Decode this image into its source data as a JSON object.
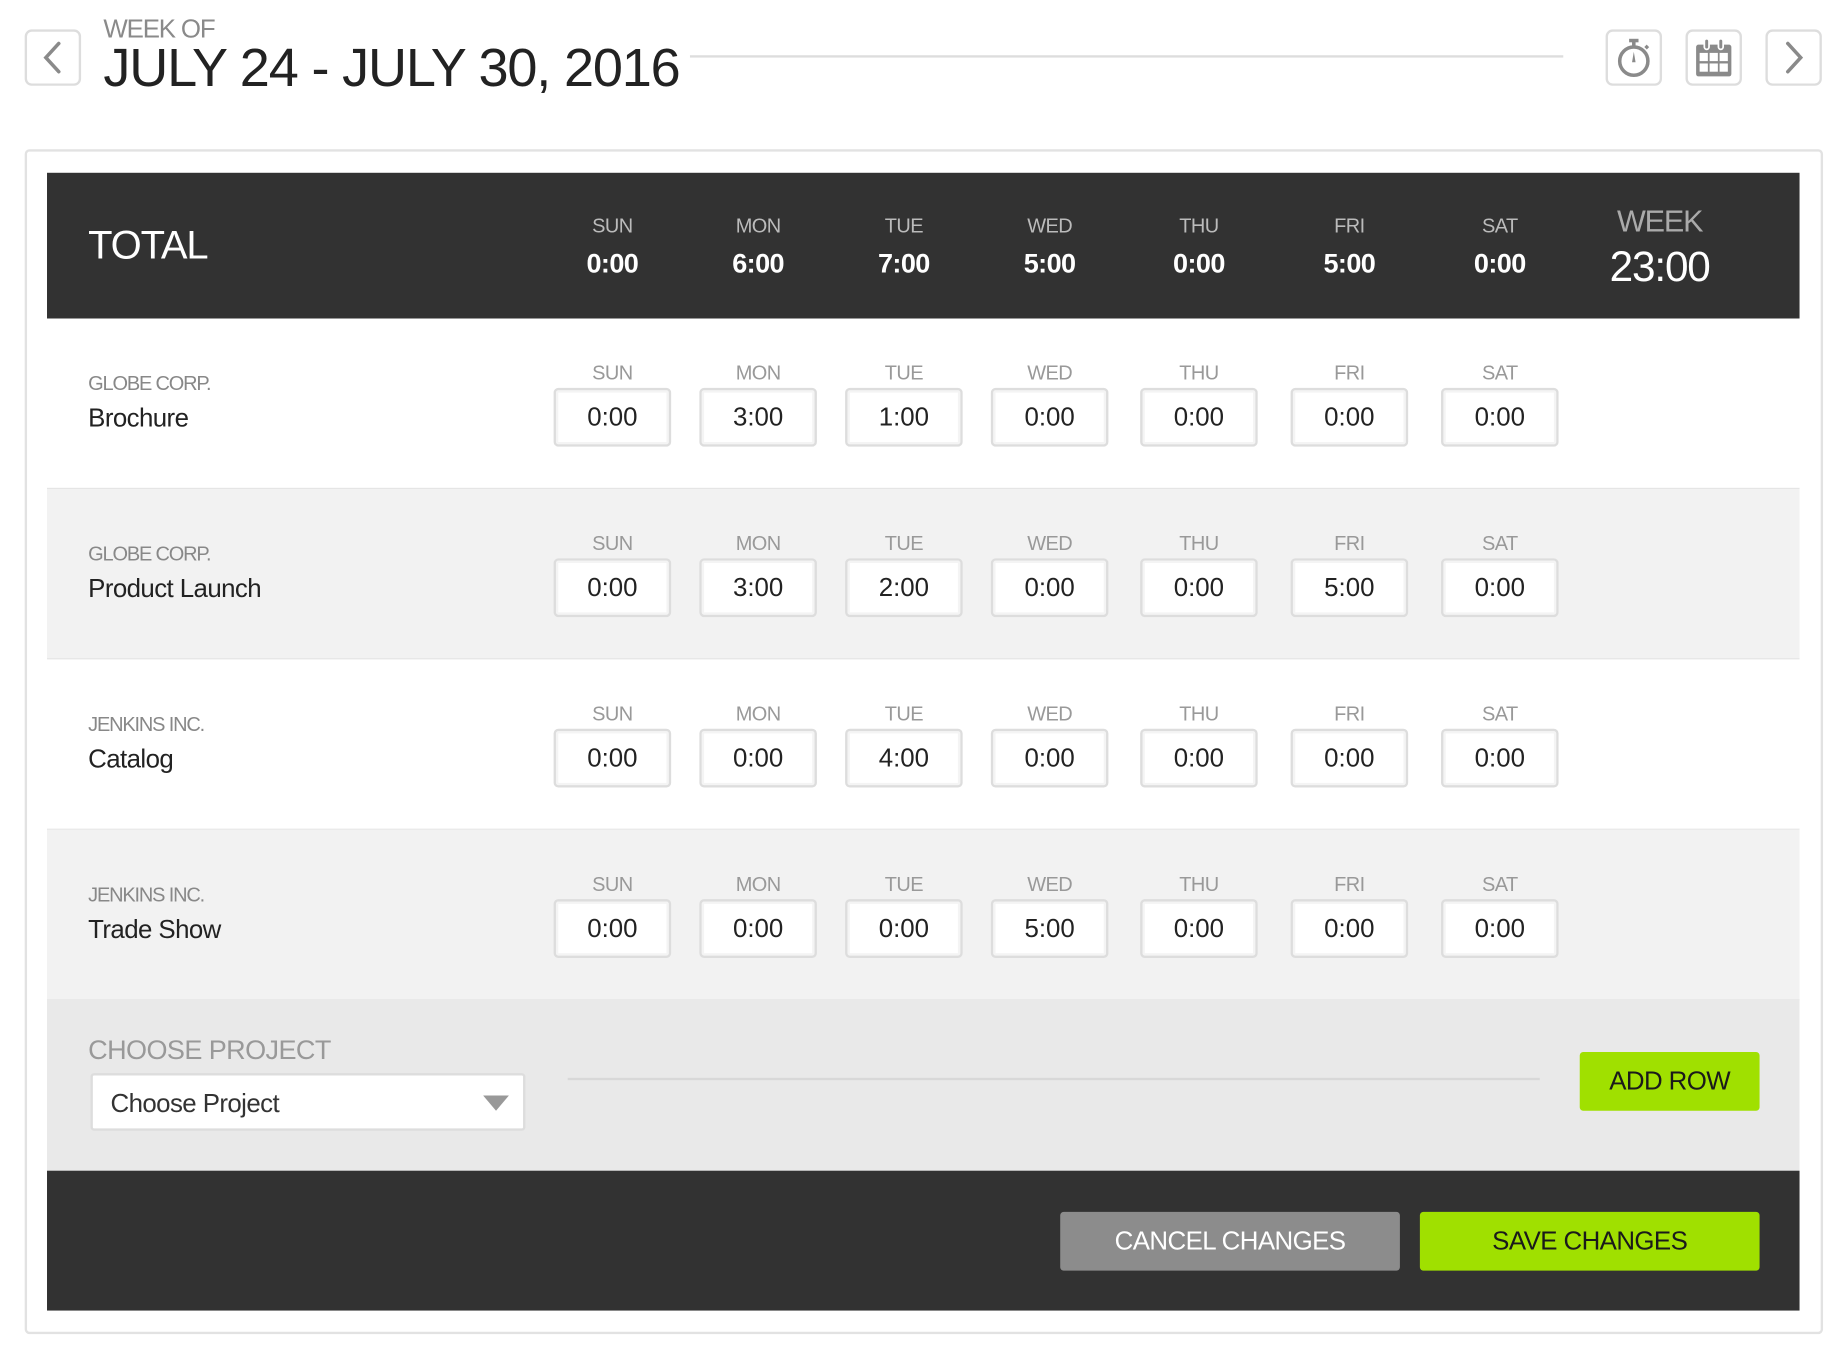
{
  "header": {
    "week_of_label": "WEEK OF",
    "date_range": "JULY 24 - JULY 30, 2016",
    "icons": {
      "prev": "chevron-left-icon",
      "timer": "stopwatch-icon",
      "calendar": "calendar-icon",
      "next": "chevron-right-icon"
    }
  },
  "totals": {
    "label": "TOTAL",
    "week_label": "WEEK",
    "week_value": "23:00",
    "days": [
      {
        "day": "SUN",
        "value": "0:00"
      },
      {
        "day": "MON",
        "value": "6:00"
      },
      {
        "day": "TUE",
        "value": "7:00"
      },
      {
        "day": "WED",
        "value": "5:00"
      },
      {
        "day": "THU",
        "value": "0:00"
      },
      {
        "day": "FRI",
        "value": "5:00"
      },
      {
        "day": "SAT",
        "value": "0:00"
      }
    ]
  },
  "day_labels": [
    "SUN",
    "MON",
    "TUE",
    "WED",
    "THU",
    "FRI",
    "SAT"
  ],
  "rows": [
    {
      "client": "GLOBE CORP.",
      "project": "Brochure",
      "hours": [
        "0:00",
        "3:00",
        "1:00",
        "0:00",
        "0:00",
        "0:00",
        "0:00"
      ]
    },
    {
      "client": "GLOBE CORP.",
      "project": "Product Launch",
      "hours": [
        "0:00",
        "3:00",
        "2:00",
        "0:00",
        "0:00",
        "5:00",
        "0:00"
      ]
    },
    {
      "client": "JENKINS INC.",
      "project": "Catalog",
      "hours": [
        "0:00",
        "0:00",
        "4:00",
        "0:00",
        "0:00",
        "0:00",
        "0:00"
      ]
    },
    {
      "client": "JENKINS INC.",
      "project": "Trade Show",
      "hours": [
        "0:00",
        "0:00",
        "0:00",
        "5:00",
        "0:00",
        "0:00",
        "0:00"
      ]
    }
  ],
  "choose_project": {
    "label": "CHOOSE PROJECT",
    "selected": "Choose Project",
    "add_row": "ADD ROW"
  },
  "footer": {
    "cancel": "CANCEL CHANGES",
    "save": "SAVE CHANGES"
  },
  "colors": {
    "dark": "#323232",
    "accent": "#a0e000",
    "cancel": "#8c8c8c"
  }
}
